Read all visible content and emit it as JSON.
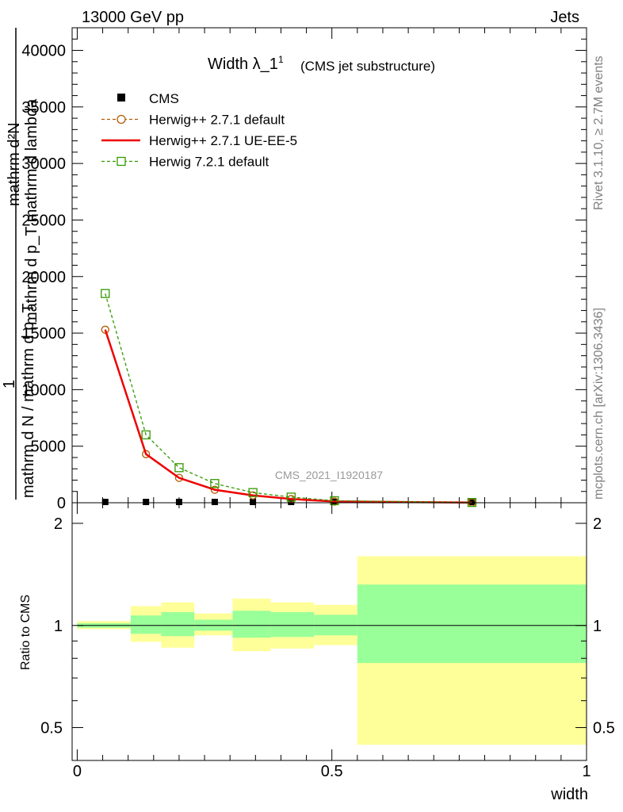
{
  "header": {
    "left": "13000 GeV pp",
    "right": "Jets"
  },
  "side_texts": {
    "rivet": "Rivet 3.1.10, ≥ 2.7M events",
    "mcplots": "mcplots.cern.ch [arXiv:1306.3436]"
  },
  "chart_data": [
    {
      "type": "line",
      "title": "Width λ_1",
      "title_sup": "1",
      "subtitle": "(CMS jet substructure)",
      "watermark": "CMS_2021_I1920187",
      "ylabel_top": "mathrm d²N",
      "ylabel_top2": "mathrm d p_T mathrm d lambda",
      "ylabel_left": "1",
      "ylabel_bottom": "mathrm d N / mathrm d p_T",
      "ylim": [
        0,
        42000
      ],
      "y_ticks": [
        0,
        5000,
        10000,
        15000,
        20000,
        25000,
        30000,
        35000,
        40000
      ],
      "y_tick_labels": [
        "0",
        "5000",
        "10000",
        "15000",
        "20000",
        "25000",
        "30000",
        "35000",
        "40000"
      ],
      "x": [
        0.055,
        0.135,
        0.2,
        0.27,
        0.345,
        0.42,
        0.505,
        0.775
      ],
      "series": [
        {
          "name": "CMS",
          "marker": "square",
          "color": "#000000",
          "values": [
            0,
            0,
            0,
            0,
            0,
            0,
            0,
            0
          ]
        },
        {
          "name": "Herwig++ 2.7.1 default",
          "marker": "circle",
          "dash": "4,3",
          "color": "#b35900",
          "values": [
            15300,
            4300,
            2200,
            1150,
            650,
            330,
            110,
            15
          ]
        },
        {
          "name": "Herwig++ 2.7.1 UE-EE-5",
          "marker": "none",
          "color": "#ee0000",
          "values": [
            15300,
            4300,
            2200,
            1150,
            650,
            330,
            110,
            15
          ]
        },
        {
          "name": "Herwig 7.2.1 default",
          "marker": "square-open",
          "dash": "4,3",
          "color": "#339900",
          "values": [
            18500,
            6000,
            3100,
            1700,
            900,
            500,
            180,
            25
          ]
        }
      ]
    },
    {
      "type": "area",
      "ylabel": "Ratio to CMS",
      "xlabel": "width",
      "xlim": [
        -0.01,
        1.0
      ],
      "ylim": [
        0.4,
        2.3
      ],
      "y_log": true,
      "x_ticks": [
        0,
        0.5,
        1
      ],
      "x_tick_labels": [
        "0",
        "0.5",
        "1"
      ],
      "y_ticks": [
        0.5,
        1,
        2
      ],
      "y_tick_labels": [
        "0.5",
        "1",
        "2"
      ],
      "bins": [
        {
          "lo": 0.0,
          "hi": 0.105,
          "green": [
            0.985,
            1.015
          ],
          "yellow": [
            0.975,
            1.03
          ]
        },
        {
          "lo": 0.105,
          "hi": 0.165,
          "green": [
            0.945,
            1.07
          ],
          "yellow": [
            0.895,
            1.14
          ]
        },
        {
          "lo": 0.165,
          "hi": 0.23,
          "green": [
            0.93,
            1.095
          ],
          "yellow": [
            0.86,
            1.17
          ]
        },
        {
          "lo": 0.23,
          "hi": 0.305,
          "green": [
            0.965,
            1.04
          ],
          "yellow": [
            0.935,
            1.085
          ]
        },
        {
          "lo": 0.305,
          "hi": 0.38,
          "green": [
            0.92,
            1.105
          ],
          "yellow": [
            0.84,
            1.2
          ]
        },
        {
          "lo": 0.38,
          "hi": 0.465,
          "green": [
            0.925,
            1.095
          ],
          "yellow": [
            0.855,
            1.17
          ]
        },
        {
          "lo": 0.465,
          "hi": 0.55,
          "green": [
            0.935,
            1.075
          ],
          "yellow": [
            0.875,
            1.15
          ]
        },
        {
          "lo": 0.55,
          "hi": 1.0,
          "green": [
            0.775,
            1.32
          ],
          "yellow": [
            0.445,
            1.6
          ]
        }
      ],
      "band_colors": {
        "green": "#99ff99",
        "yellow": "#ffff99"
      },
      "ref_line": 1
    }
  ]
}
